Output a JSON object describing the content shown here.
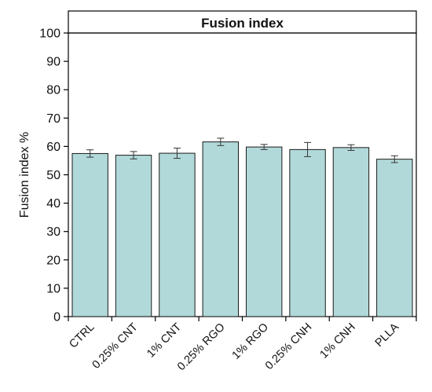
{
  "chart_data": {
    "type": "bar",
    "title": "Fusion index",
    "xlabel": "",
    "ylabel": "Fusion index %",
    "ylim": [
      0,
      100
    ],
    "yticks": [
      0,
      10,
      20,
      30,
      40,
      50,
      60,
      70,
      80,
      90,
      100
    ],
    "categories": [
      "CTRL",
      "0.25% CNT",
      "1% CNT",
      "0.25% RGO",
      "1% RGO",
      "0.25% CNH",
      "1% CNH",
      "PLLA"
    ],
    "values": [
      57.5,
      56.9,
      57.6,
      61.6,
      59.8,
      58.9,
      59.6,
      55.5
    ],
    "errors": [
      1.3,
      1.3,
      1.8,
      1.3,
      0.9,
      2.5,
      1.0,
      1.2
    ],
    "grid": false,
    "legend": "none",
    "colors": {
      "bar_fill": "#b2d9da",
      "bar_stroke": "#1a1a1a",
      "axis": "#000000"
    }
  }
}
